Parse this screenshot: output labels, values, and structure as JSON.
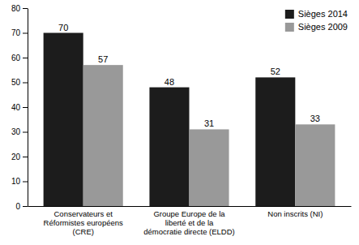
{
  "chart_data": {
    "type": "bar",
    "categories": [
      "Conservateurs et\nRéformistes européens\n(CRE)",
      "Groupe Europe de la\nliberté et de la\ndémocratie directe (ELDD)",
      "Non inscrits (NI)"
    ],
    "series": [
      {
        "name": "Sièges 2014",
        "color": "#1c1c1c",
        "values": [
          70,
          48,
          52
        ]
      },
      {
        "name": "Sièges 2009",
        "color": "#999999",
        "values": [
          57,
          31,
          33
        ]
      }
    ],
    "ylim": [
      0,
      80
    ],
    "yticks": [
      0,
      10,
      20,
      30,
      40,
      50,
      60,
      70,
      80
    ],
    "legend": "upper right",
    "data_labels": true,
    "grid": false
  }
}
